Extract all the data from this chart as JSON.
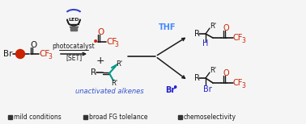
{
  "fig_width": 3.78,
  "fig_height": 1.54,
  "dpi": 100,
  "bg_color": "#f5f5f5",
  "legend_items": [
    {
      "label": "mild conditions"
    },
    {
      "label": "broad FG tolelance"
    },
    {
      "label": "chemoselectivity"
    }
  ],
  "legend_square_color": "#333333",
  "thf_color": "#4488ff",
  "br_radical_color": "#2222cc",
  "unactivated_color": "#3355cc",
  "red_color": "#cc2200",
  "teal_color": "#009988",
  "black_color": "#1a1a1a",
  "gray_color": "#666666",
  "led_blue": "#3344cc",
  "bulb_gray": "#888888"
}
